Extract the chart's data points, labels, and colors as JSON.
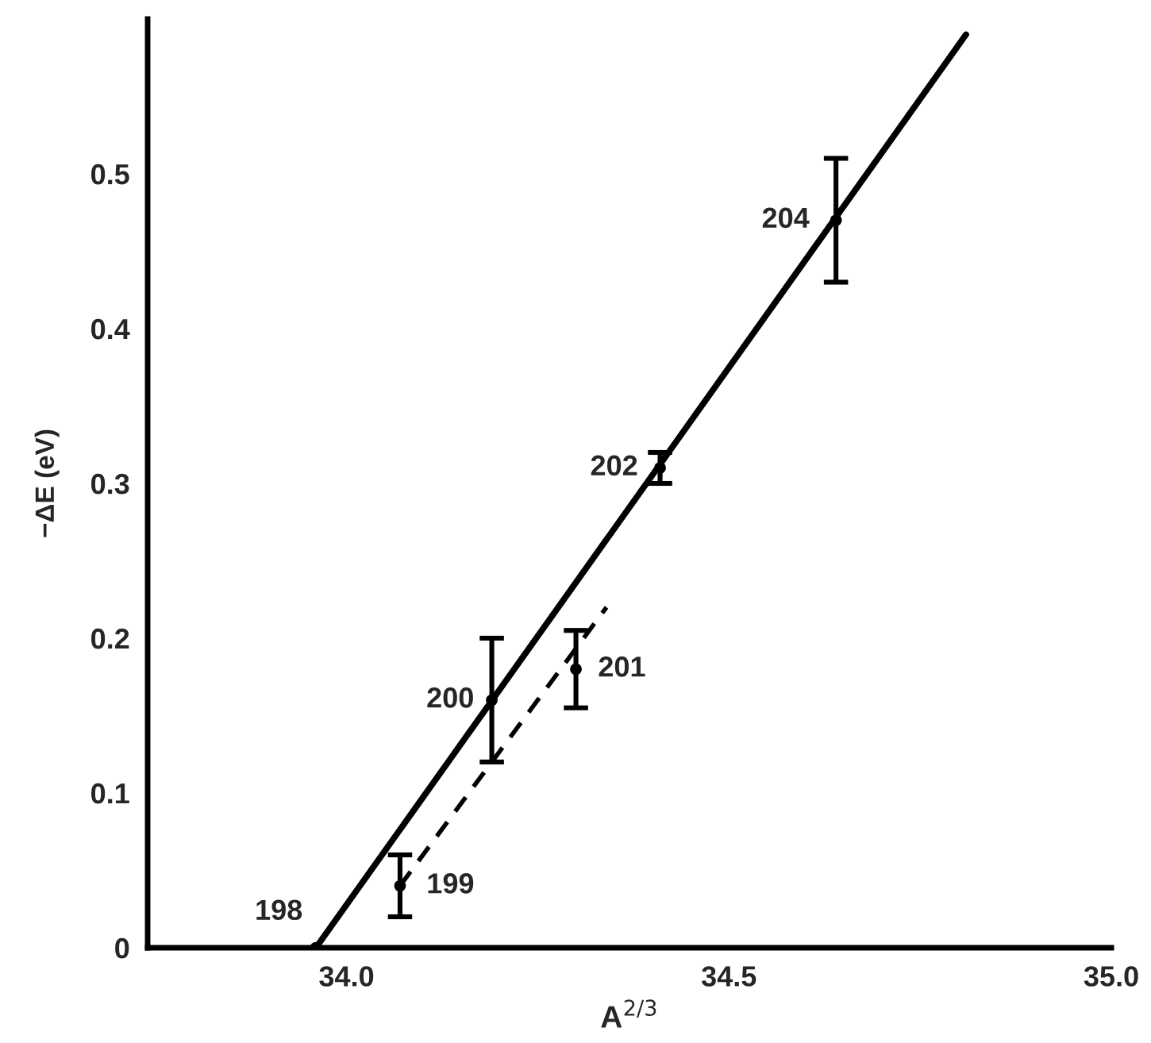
{
  "chart_data": {
    "type": "scatter",
    "xlabel": "A$^{2/3}$",
    "ylabel": "−ΔE (eV)",
    "xlim": [
      33.74,
      35.0
    ],
    "xticks": [
      {
        "value": 34,
        "label": "34.0"
      },
      {
        "value": 34.5,
        "label": "34.5"
      },
      {
        "value": 35,
        "label": "35.0"
      }
    ],
    "ylim": [
      0,
      0.6
    ],
    "yticks": [
      0,
      0.1,
      0.2,
      0.3,
      0.4,
      0.5
    ],
    "grid": false,
    "legend": false,
    "series": [
      {
        "marker": "circle",
        "color": "#000000",
        "x": [
          33.96,
          34.07,
          34.19,
          34.3,
          34.41,
          34.64
        ],
        "values": [
          0,
          0.04,
          0.16,
          0.18,
          0.31,
          0.47
        ],
        "errors": [
          null,
          0.02,
          0.04,
          0.025,
          0.01,
          0.04
        ]
      },
      {
        "type": "line",
        "color": "#000000",
        "line_style": "solid",
        "x": [
          33.96,
          34.81
        ],
        "values": [
          0,
          0.59
        ]
      },
      {
        "type": "line",
        "color": "#000000",
        "line_style": "dashed",
        "x": [
          34.07,
          34.34
        ],
        "values": [
          0.04,
          0.22
        ]
      }
    ],
    "annotations": [
      {
        "text": "198",
        "x": 33.96,
        "y": 0
      },
      {
        "text": "199",
        "x": 34.07,
        "y": 0.04
      },
      {
        "text": "200",
        "x": 34.19,
        "y": 0.16
      },
      {
        "text": "201",
        "x": 34.3,
        "y": 0.18
      },
      {
        "text": "202",
        "x": 34.41,
        "y": 0.31
      },
      {
        "text": "204",
        "x": 34.64,
        "y": 0.47
      }
    ]
  }
}
